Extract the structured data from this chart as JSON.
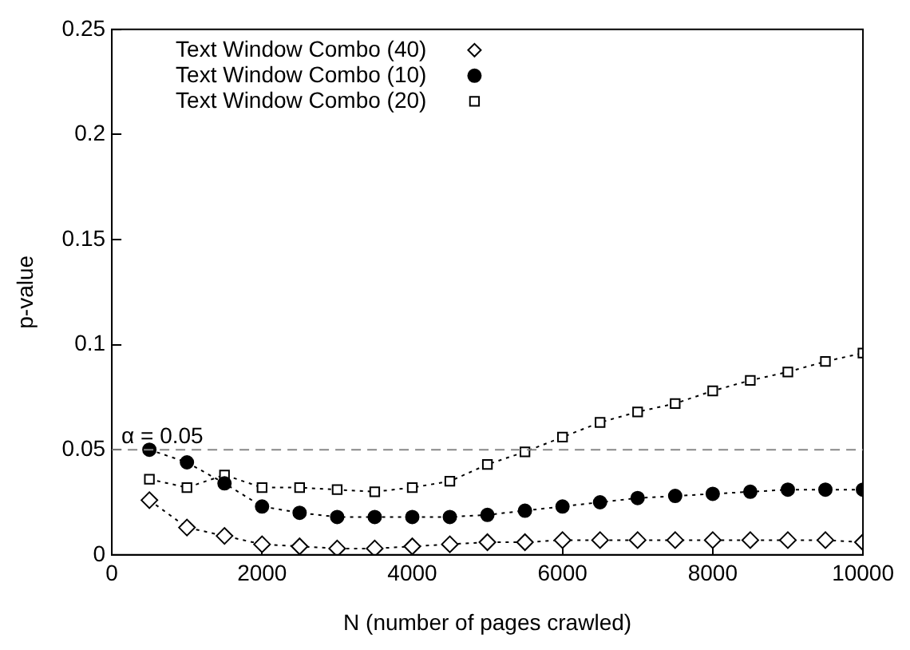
{
  "chart_data": {
    "type": "line",
    "xlabel": "N (number of pages crawled)",
    "ylabel": "p-value",
    "x": [
      500,
      1000,
      1500,
      2000,
      2500,
      3000,
      3500,
      4000,
      4500,
      5000,
      5500,
      6000,
      6500,
      7000,
      7500,
      8000,
      8500,
      9000,
      9500,
      10000
    ],
    "series": [
      {
        "name": "Text Window Combo (40)",
        "color": "#000000",
        "marker": "diamond",
        "values": [
          0.026,
          0.013,
          0.009,
          0.005,
          0.004,
          0.003,
          0.003,
          0.004,
          0.005,
          0.006,
          0.006,
          0.007,
          0.007,
          0.007,
          0.007,
          0.007,
          0.007,
          0.007,
          0.007,
          0.006
        ]
      },
      {
        "name": "Text Window Combo (10)",
        "color": "#000000",
        "marker": "circle",
        "values": [
          0.05,
          0.044,
          0.034,
          0.023,
          0.02,
          0.018,
          0.018,
          0.018,
          0.018,
          0.019,
          0.021,
          0.023,
          0.025,
          0.027,
          0.028,
          0.029,
          0.03,
          0.031,
          0.031,
          0.031
        ]
      },
      {
        "name": "Text Window Combo (20)",
        "color": "#000000",
        "marker": "square",
        "values": [
          0.036,
          0.032,
          0.038,
          0.032,
          0.032,
          0.031,
          0.03,
          0.032,
          0.035,
          0.043,
          0.049,
          0.056,
          0.063,
          0.068,
          0.072,
          0.078,
          0.083,
          0.087,
          0.092,
          0.096
        ]
      }
    ],
    "xlim": [
      0,
      10000
    ],
    "xticks": [
      0,
      2000,
      4000,
      6000,
      8000,
      10000
    ],
    "ylim": [
      0,
      0.25
    ],
    "yticks": [
      0,
      0.05,
      0.1,
      0.15,
      0.2,
      0.25
    ],
    "ref_lines": [
      {
        "axis": "y",
        "value": 0.05,
        "label": "α = 0.05",
        "color": "#888888",
        "line_style": "dashed"
      }
    ],
    "grid": false,
    "legend": "top left",
    "line_style": "dotted"
  }
}
